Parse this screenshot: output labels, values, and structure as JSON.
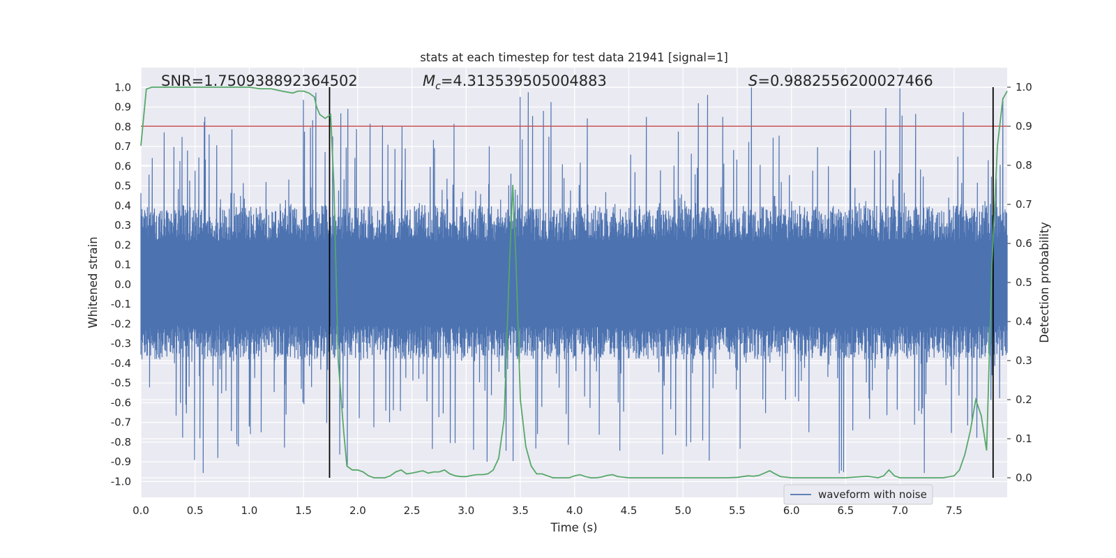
{
  "chart_data": {
    "type": "line",
    "title": "stats at each timestep for test data 21941 [signal=1]",
    "xlabel": "Time (s)",
    "ylabel": "Whitened strain",
    "ylabel_right": "Detection probability",
    "xlim": [
      0.0,
      7.99
    ],
    "ylim": [
      -1.08,
      1.1
    ],
    "ylim_right": [
      -0.05,
      1.05
    ],
    "x_ticks": [
      "0.0",
      "0.5",
      "1.0",
      "1.5",
      "2.0",
      "2.5",
      "3.0",
      "3.5",
      "4.0",
      "4.5",
      "5.0",
      "5.5",
      "6.0",
      "6.5",
      "7.0",
      "7.5"
    ],
    "y_ticks": [
      "1.0",
      "0.9",
      "0.8",
      "0.7",
      "0.6",
      "0.5",
      "0.4",
      "0.3",
      "0.2",
      "0.1",
      "0.0",
      "-0.1",
      "-0.2",
      "-0.3",
      "-0.4",
      "-0.5",
      "-0.6",
      "-0.7",
      "-0.8",
      "-0.9",
      "-1.0"
    ],
    "y_ticks_right": [
      "1.0",
      "0.9",
      "0.8",
      "0.7",
      "0.6",
      "0.5",
      "0.4",
      "0.3",
      "0.2",
      "0.1",
      "0.0"
    ],
    "annotations": {
      "snr": "SNR=1.750938892364502",
      "mc_symbol": "M",
      "mc_subscript": "c",
      "mc_value": "=4.313539505004883",
      "s_symbol": "S",
      "s_value": "=0.9882556200027466"
    },
    "threshold_right": 0.9,
    "vertical_lines_x": [
      1.74,
      7.86
    ],
    "series": [
      {
        "name": "waveform with noise",
        "axis": "left",
        "color": "#4c72b0",
        "description": "whitened strain noise, dense trace",
        "sample_count": 1600,
        "envelope_upper": 0.4,
        "envelope_lower": -0.38,
        "peak_max": 1.0,
        "peak_min": -0.98
      },
      {
        "name": "detection probability",
        "axis": "right",
        "color": "#55a868",
        "x": [
          0.0,
          0.05,
          0.1,
          0.2,
          0.4,
          0.6,
          0.8,
          1.0,
          1.1,
          1.2,
          1.3,
          1.4,
          1.45,
          1.5,
          1.55,
          1.6,
          1.62,
          1.65,
          1.7,
          1.75,
          1.78,
          1.82,
          1.87,
          1.9,
          1.95,
          2.0,
          2.05,
          2.1,
          2.15,
          2.2,
          2.25,
          2.3,
          2.35,
          2.4,
          2.45,
          2.5,
          2.55,
          2.6,
          2.65,
          2.7,
          2.75,
          2.8,
          2.85,
          2.9,
          2.95,
          3.0,
          3.05,
          3.1,
          3.15,
          3.2,
          3.25,
          3.3,
          3.35,
          3.4,
          3.43,
          3.46,
          3.5,
          3.55,
          3.6,
          3.65,
          3.7,
          3.75,
          3.8,
          3.85,
          3.9,
          3.95,
          4.0,
          4.05,
          4.1,
          4.15,
          4.2,
          4.25,
          4.3,
          4.35,
          4.4,
          4.5,
          4.6,
          4.8,
          5.0,
          5.2,
          5.4,
          5.5,
          5.55,
          5.6,
          5.65,
          5.7,
          5.75,
          5.8,
          5.85,
          5.9,
          6.0,
          6.1,
          6.2,
          6.3,
          6.4,
          6.5,
          6.6,
          6.7,
          6.8,
          6.85,
          6.9,
          6.95,
          7.0,
          7.1,
          7.2,
          7.3,
          7.4,
          7.5,
          7.55,
          7.6,
          7.65,
          7.7,
          7.75,
          7.8,
          7.85,
          7.9,
          7.95,
          7.99
        ],
        "values": [
          0.85,
          0.995,
          1.0,
          1.0,
          1.0,
          1.0,
          1.0,
          1.0,
          0.996,
          0.996,
          0.99,
          0.985,
          0.99,
          0.99,
          0.985,
          0.975,
          0.95,
          0.93,
          0.92,
          0.93,
          0.75,
          0.3,
          0.12,
          0.03,
          0.02,
          0.02,
          0.015,
          0.005,
          0.0,
          0.0,
          0.0,
          0.005,
          0.015,
          0.02,
          0.01,
          0.012,
          0.015,
          0.018,
          0.012,
          0.015,
          0.015,
          0.02,
          0.01,
          0.005,
          0.003,
          0.003,
          0.006,
          0.008,
          0.008,
          0.01,
          0.02,
          0.05,
          0.15,
          0.55,
          0.75,
          0.55,
          0.2,
          0.08,
          0.03,
          0.01,
          0.01,
          0.005,
          0.0,
          0.0,
          0.0,
          0.0,
          0.005,
          0.008,
          0.003,
          0.0,
          0.0,
          0.002,
          0.006,
          0.008,
          0.003,
          0.0,
          0.0,
          0.0,
          0.0,
          0.0,
          0.0,
          0.001,
          0.003,
          0.005,
          0.004,
          0.006,
          0.012,
          0.018,
          0.01,
          0.003,
          0.0,
          0.0,
          0.0,
          0.0,
          0.0,
          0.0,
          0.002,
          0.004,
          0.0,
          0.005,
          0.02,
          0.005,
          0.0,
          0.0,
          0.0,
          0.0,
          0.0,
          0.005,
          0.02,
          0.06,
          0.12,
          0.2,
          0.16,
          0.07,
          0.55,
          0.85,
          0.97,
          0.99
        ]
      }
    ],
    "legend": {
      "position": "lower-right",
      "entries": [
        "waveform with noise"
      ]
    }
  }
}
